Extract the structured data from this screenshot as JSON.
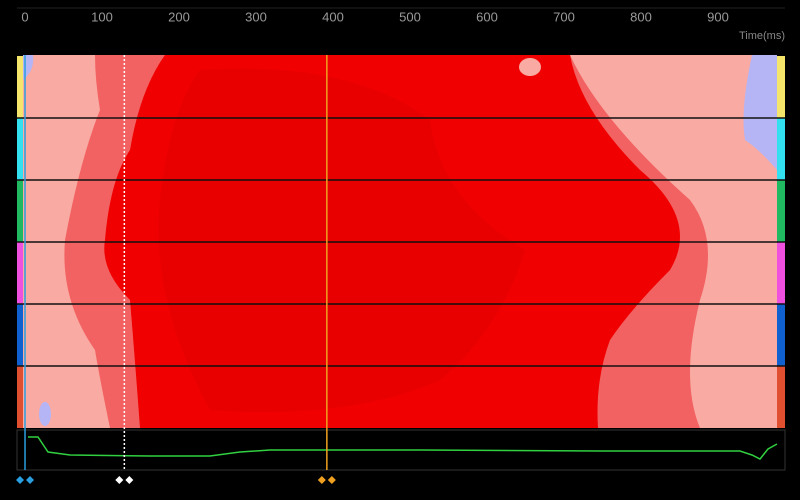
{
  "axis": {
    "label": "Time(ms)",
    "xlim": [
      -10.4,
      987
    ],
    "xticks": [
      0,
      100,
      200,
      300,
      400,
      500,
      600,
      700,
      800,
      900
    ]
  },
  "cursors": [
    {
      "time": 0,
      "color": "#2a9fe0"
    },
    {
      "time": 129,
      "color": "#ffffff"
    },
    {
      "time": 392,
      "color": "#f0a020"
    }
  ]
}
